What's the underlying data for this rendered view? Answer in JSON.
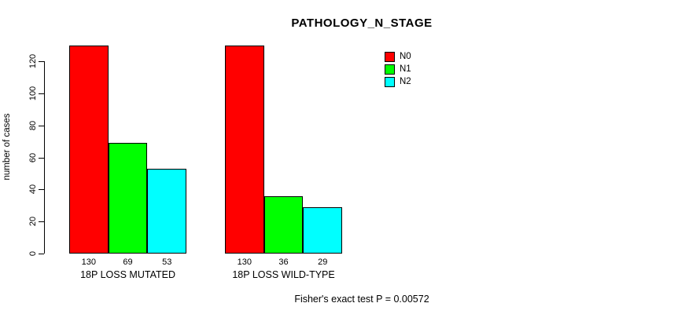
{
  "chart_data": {
    "type": "bar",
    "title": "PATHOLOGY_N_STAGE",
    "xlabel": "",
    "ylabel": "number of cases",
    "categories": [
      "18P LOSS MUTATED",
      "18P LOSS WILD-TYPE"
    ],
    "series": [
      {
        "name": "N0",
        "color": "#ff0000",
        "values": [
          130,
          130
        ]
      },
      {
        "name": "N1",
        "color": "#00ff00",
        "values": [
          69,
          36
        ]
      },
      {
        "name": "N2",
        "color": "#00ffff",
        "values": [
          53,
          29
        ]
      }
    ],
    "yticks": [
      0,
      20,
      40,
      60,
      80,
      100,
      120
    ],
    "ylim": [
      0,
      130
    ],
    "grid": false,
    "legend_position": "top-right",
    "bar_value_labels": [
      [
        130,
        69,
        53
      ],
      [
        130,
        36,
        29
      ]
    ],
    "annotation": "Fisher's exact test P = 0.00572"
  }
}
